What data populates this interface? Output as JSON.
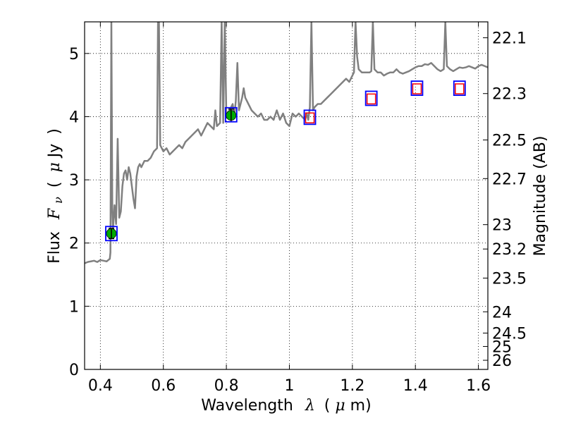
{
  "chart_data": {
    "type": "line",
    "xlabel": {
      "prefix": "Wavelength",
      "symbol": "λ",
      "unit_open": "(",
      "unit_mu": "μ",
      "unit_rest": "m)"
    },
    "ylabel": {
      "prefix": "Flux",
      "symbol": "F",
      "subscript": "ν",
      "unit_open": "(",
      "unit_mu": "μ",
      "unit_rest": "Jy",
      "unit_close": ")"
    },
    "y2label": "Magnitude (AB)",
    "xlim": [
      0.35,
      1.63
    ],
    "ylim": [
      0,
      5.5
    ],
    "grid": true,
    "x_ticks": [
      "0.4",
      "0.6",
      "0.8",
      "1",
      "1.2",
      "1.4",
      "1.6"
    ],
    "x_tick_values": [
      0.4,
      0.6,
      0.8,
      1.0,
      1.2,
      1.4,
      1.6
    ],
    "y_ticks": [
      "0",
      "1",
      "2",
      "3",
      "4",
      "5"
    ],
    "y_tick_values": [
      0,
      1,
      2,
      3,
      4,
      5
    ],
    "y2_ticks": [
      "22.1",
      "22.3",
      "22.5",
      "22.7",
      "23",
      "23.2",
      "23.5",
      "24",
      "24.5",
      "25",
      "26"
    ],
    "y2_tick_magnitudes": [
      22.1,
      22.3,
      22.5,
      22.7,
      23.0,
      23.2,
      23.5,
      24.0,
      24.5,
      25.0,
      26.0
    ],
    "colors": {
      "spectrum": "#808080",
      "observed_marker": "#00aa00",
      "model_box": "#0000ff",
      "upper_box": "#ff0000",
      "grid": "#000000"
    },
    "series": [
      {
        "style": "line",
        "points": [
          [
            0.35,
            1.68
          ],
          [
            0.36,
            1.7
          ],
          [
            0.37,
            1.71
          ],
          [
            0.38,
            1.72
          ],
          [
            0.39,
            1.7
          ],
          [
            0.4,
            1.73
          ],
          [
            0.41,
            1.72
          ],
          [
            0.42,
            1.71
          ],
          [
            0.425,
            1.73
          ],
          [
            0.43,
            1.75
          ],
          [
            0.432,
            1.85
          ],
          [
            0.435,
            5.5
          ],
          [
            0.438,
            2.5
          ],
          [
            0.44,
            2.2
          ],
          [
            0.445,
            2.6
          ],
          [
            0.45,
            2.3
          ],
          [
            0.455,
            3.65
          ],
          [
            0.46,
            2.4
          ],
          [
            0.465,
            2.5
          ],
          [
            0.47,
            2.9
          ],
          [
            0.475,
            3.1
          ],
          [
            0.48,
            3.15
          ],
          [
            0.485,
            3.0
          ],
          [
            0.49,
            3.2
          ],
          [
            0.495,
            3.1
          ],
          [
            0.5,
            2.9
          ],
          [
            0.505,
            2.7
          ],
          [
            0.51,
            2.55
          ],
          [
            0.515,
            3.05
          ],
          [
            0.52,
            3.2
          ],
          [
            0.525,
            3.25
          ],
          [
            0.53,
            3.2
          ],
          [
            0.54,
            3.3
          ],
          [
            0.55,
            3.3
          ],
          [
            0.56,
            3.35
          ],
          [
            0.57,
            3.45
          ],
          [
            0.58,
            3.5
          ],
          [
            0.583,
            5.5
          ],
          [
            0.586,
            5.5
          ],
          [
            0.59,
            3.55
          ],
          [
            0.6,
            3.45
          ],
          [
            0.61,
            3.5
          ],
          [
            0.62,
            3.4
          ],
          [
            0.63,
            3.45
          ],
          [
            0.64,
            3.5
          ],
          [
            0.65,
            3.55
          ],
          [
            0.66,
            3.5
          ],
          [
            0.67,
            3.6
          ],
          [
            0.68,
            3.65
          ],
          [
            0.69,
            3.7
          ],
          [
            0.7,
            3.75
          ],
          [
            0.71,
            3.8
          ],
          [
            0.72,
            3.7
          ],
          [
            0.73,
            3.8
          ],
          [
            0.74,
            3.9
          ],
          [
            0.75,
            3.85
          ],
          [
            0.76,
            3.8
          ],
          [
            0.765,
            4.1
          ],
          [
            0.77,
            3.85
          ],
          [
            0.78,
            3.9
          ],
          [
            0.785,
            5.5
          ],
          [
            0.79,
            3.9
          ],
          [
            0.795,
            5.5
          ],
          [
            0.8,
            4.0
          ],
          [
            0.81,
            4.1
          ],
          [
            0.82,
            4.2
          ],
          [
            0.825,
            4.0
          ],
          [
            0.83,
            4.25
          ],
          [
            0.835,
            4.85
          ],
          [
            0.84,
            4.1
          ],
          [
            0.85,
            4.3
          ],
          [
            0.855,
            4.45
          ],
          [
            0.86,
            4.3
          ],
          [
            0.87,
            4.2
          ],
          [
            0.88,
            4.1
          ],
          [
            0.89,
            4.05
          ],
          [
            0.9,
            4.0
          ],
          [
            0.91,
            4.05
          ],
          [
            0.92,
            3.95
          ],
          [
            0.93,
            3.95
          ],
          [
            0.94,
            4.0
          ],
          [
            0.95,
            3.95
          ],
          [
            0.96,
            4.1
          ],
          [
            0.97,
            3.95
          ],
          [
            0.98,
            4.05
          ],
          [
            0.99,
            3.9
          ],
          [
            1.0,
            3.85
          ],
          [
            1.005,
            3.95
          ],
          [
            1.01,
            4.05
          ],
          [
            1.02,
            4.0
          ],
          [
            1.03,
            4.05
          ],
          [
            1.04,
            4.0
          ],
          [
            1.05,
            3.95
          ],
          [
            1.055,
            4.05
          ],
          [
            1.06,
            3.95
          ],
          [
            1.065,
            4.15
          ],
          [
            1.07,
            5.5
          ],
          [
            1.075,
            4.1
          ],
          [
            1.08,
            4.15
          ],
          [
            1.09,
            4.2
          ],
          [
            1.1,
            4.2
          ],
          [
            1.11,
            4.25
          ],
          [
            1.12,
            4.3
          ],
          [
            1.13,
            4.35
          ],
          [
            1.14,
            4.4
          ],
          [
            1.15,
            4.45
          ],
          [
            1.16,
            4.5
          ],
          [
            1.17,
            4.55
          ],
          [
            1.18,
            4.6
          ],
          [
            1.19,
            4.55
          ],
          [
            1.2,
            4.65
          ],
          [
            1.205,
            4.7
          ],
          [
            1.21,
            5.5
          ],
          [
            1.215,
            4.95
          ],
          [
            1.22,
            4.75
          ],
          [
            1.23,
            4.7
          ],
          [
            1.24,
            4.7
          ],
          [
            1.25,
            4.7
          ],
          [
            1.255,
            4.7
          ],
          [
            1.26,
            4.72
          ],
          [
            1.265,
            5.5
          ],
          [
            1.27,
            4.75
          ],
          [
            1.28,
            4.7
          ],
          [
            1.29,
            4.7
          ],
          [
            1.3,
            4.65
          ],
          [
            1.31,
            4.68
          ],
          [
            1.32,
            4.7
          ],
          [
            1.33,
            4.7
          ],
          [
            1.34,
            4.75
          ],
          [
            1.35,
            4.7
          ],
          [
            1.36,
            4.68
          ],
          [
            1.37,
            4.7
          ],
          [
            1.38,
            4.72
          ],
          [
            1.39,
            4.75
          ],
          [
            1.4,
            4.78
          ],
          [
            1.41,
            4.8
          ],
          [
            1.42,
            4.8
          ],
          [
            1.43,
            4.83
          ],
          [
            1.44,
            4.82
          ],
          [
            1.45,
            4.85
          ],
          [
            1.46,
            4.8
          ],
          [
            1.47,
            4.75
          ],
          [
            1.48,
            4.72
          ],
          [
            1.49,
            4.75
          ],
          [
            1.495,
            5.5
          ],
          [
            1.5,
            4.8
          ],
          [
            1.51,
            4.75
          ],
          [
            1.52,
            4.72
          ],
          [
            1.53,
            4.75
          ],
          [
            1.54,
            4.78
          ],
          [
            1.55,
            4.77
          ],
          [
            1.56,
            4.78
          ],
          [
            1.57,
            4.8
          ],
          [
            1.58,
            4.78
          ],
          [
            1.59,
            4.76
          ],
          [
            1.6,
            4.8
          ],
          [
            1.61,
            4.82
          ],
          [
            1.62,
            4.8
          ],
          [
            1.63,
            4.78
          ]
        ]
      },
      {
        "style": "observed",
        "points": [
          {
            "x": 0.435,
            "y": 2.15,
            "yerr": 0.08
          },
          {
            "x": 0.815,
            "y": 4.02,
            "yerr": 0.1
          }
        ]
      },
      {
        "style": "model_box",
        "points": [
          {
            "x": 0.435,
            "y": 2.15
          },
          {
            "x": 0.815,
            "y": 4.03
          },
          {
            "x": 1.065,
            "y": 3.99
          },
          {
            "x": 1.26,
            "y": 4.29
          },
          {
            "x": 1.405,
            "y": 4.45
          },
          {
            "x": 1.54,
            "y": 4.45
          }
        ]
      },
      {
        "style": "upper_box",
        "points": [
          {
            "x": 1.065,
            "y": 3.98
          },
          {
            "x": 1.26,
            "y": 4.28
          },
          {
            "x": 1.405,
            "y": 4.44
          },
          {
            "x": 1.54,
            "y": 4.44
          }
        ]
      }
    ]
  }
}
